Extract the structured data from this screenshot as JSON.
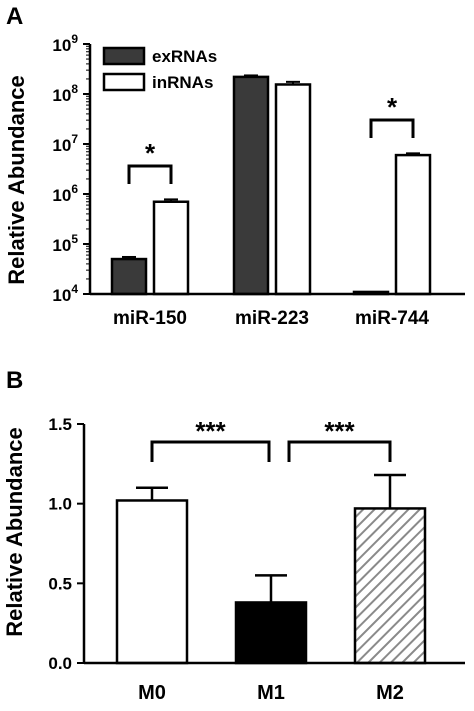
{
  "chart_data": [
    {
      "panel": "A",
      "type": "bar",
      "scale": "log",
      "ylabel": "Relative Abundance",
      "ylim": [
        10000,
        1000000000
      ],
      "yticks": [
        {
          "value": 10000,
          "base": "10",
          "exp": "4"
        },
        {
          "value": 100000,
          "base": "10",
          "exp": "5"
        },
        {
          "value": 1000000,
          "base": "10",
          "exp": "6"
        },
        {
          "value": 10000000,
          "base": "10",
          "exp": "7"
        },
        {
          "value": 100000000,
          "base": "10",
          "exp": "8"
        },
        {
          "value": 1000000000,
          "base": "10",
          "exp": "9"
        }
      ],
      "categories": [
        "miR-150",
        "miR-223",
        "miR-744"
      ],
      "series": [
        {
          "name": "exRNAs",
          "fill": "#3a3a3a",
          "values": [
            50000,
            220000000,
            11000
          ],
          "errors": [
            55000,
            235000000,
            11500
          ]
        },
        {
          "name": "inRNAs",
          "fill": "#ffffff",
          "values": [
            700000,
            155000000,
            6000000
          ],
          "errors": [
            780000,
            175000000,
            6500000
          ]
        }
      ],
      "legend": "top-left",
      "significance": [
        {
          "category": 0,
          "label": "*"
        },
        {
          "category": 2,
          "label": "*"
        }
      ]
    },
    {
      "panel": "B",
      "type": "bar",
      "ylabel": "Relative Abundance",
      "ylim": [
        0,
        1.5
      ],
      "yticks": [
        "0.0",
        "0.5",
        "1.0",
        "1.5"
      ],
      "categories": [
        "M0",
        "M1",
        "M2"
      ],
      "values": [
        1.02,
        0.38,
        0.97
      ],
      "errors": [
        0.08,
        0.17,
        0.21
      ],
      "fills": [
        "#ffffff",
        "#000000",
        "hatch"
      ],
      "significance": [
        {
          "from": 0,
          "to": 1,
          "label": "***"
        },
        {
          "from": 1,
          "to": 2,
          "label": "***"
        }
      ]
    }
  ]
}
